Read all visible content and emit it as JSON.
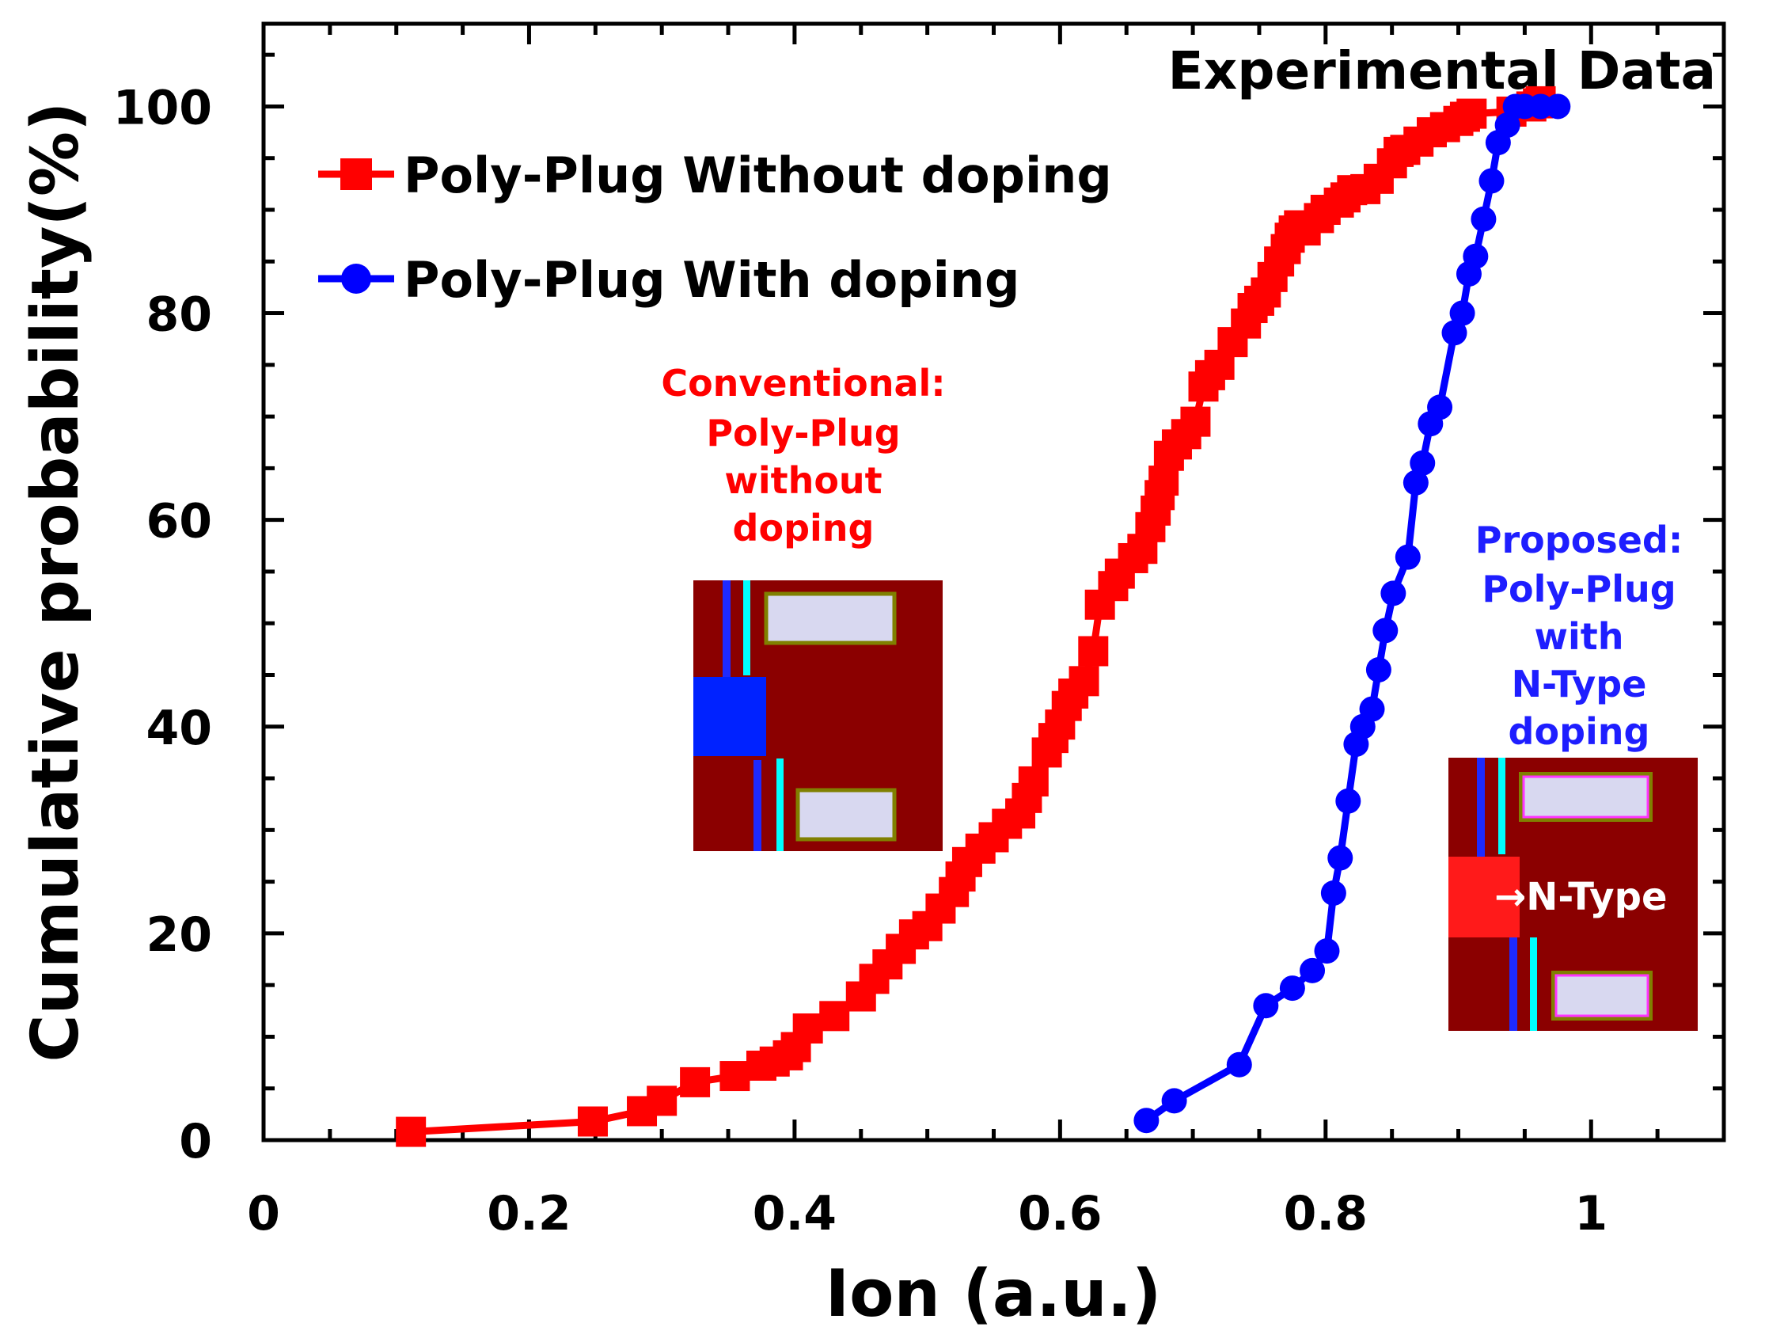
{
  "chart_data": {
    "type": "line",
    "title": "Experimental Data",
    "xlabel": "Ion (a.u.)",
    "ylabel": "Cumulative probability(%)",
    "xlim": [
      0,
      1.1
    ],
    "ylim": [
      0,
      108
    ],
    "xticks": [
      0,
      0.2,
      0.4,
      0.6,
      0.8,
      1
    ],
    "xtick_labels": [
      "0",
      "0.2",
      "0.4",
      "0.6",
      "0.8",
      "1"
    ],
    "yticks": [
      0,
      20,
      40,
      60,
      80,
      100
    ],
    "ytick_labels": [
      "0",
      "20",
      "40",
      "60",
      "80",
      "100"
    ],
    "grid": false,
    "legend_position": "top-left",
    "series": [
      {
        "name": "Poly-Plug Without doping",
        "color": "#ff0000",
        "marker": "square",
        "x": [
          0.111,
          0.248,
          0.285,
          0.3,
          0.325,
          0.355,
          0.375,
          0.385,
          0.395,
          0.401,
          0.41,
          0.43,
          0.45,
          0.46,
          0.47,
          0.48,
          0.49,
          0.5,
          0.51,
          0.52,
          0.525,
          0.53,
          0.54,
          0.55,
          0.56,
          0.57,
          0.575,
          0.58,
          0.59,
          0.595,
          0.6,
          0.605,
          0.61,
          0.618,
          0.625,
          0.63,
          0.64,
          0.645,
          0.655,
          0.662,
          0.668,
          0.672,
          0.675,
          0.678,
          0.682,
          0.688,
          0.695,
          0.702,
          0.708,
          0.713,
          0.72,
          0.73,
          0.74,
          0.745,
          0.75,
          0.755,
          0.76,
          0.765,
          0.77,
          0.773,
          0.776,
          0.78,
          0.785,
          0.795,
          0.8,
          0.81,
          0.815,
          0.82,
          0.83,
          0.84,
          0.85,
          0.855,
          0.86,
          0.87,
          0.88,
          0.89,
          0.9,
          0.905,
          0.91,
          0.94,
          0.955,
          0.96,
          0.962
        ],
        "y": [
          0.8,
          1.8,
          2.8,
          3.8,
          5.6,
          6.2,
          7.2,
          7.6,
          8.2,
          9.0,
          10.8,
          12.0,
          13.9,
          15.6,
          17.0,
          18.5,
          19.9,
          20.7,
          22.4,
          24.0,
          25.5,
          26.9,
          28.2,
          29.3,
          30.6,
          31.6,
          33.1,
          34.7,
          37.5,
          38.9,
          40.2,
          42.0,
          43.2,
          44.4,
          47.3,
          51.8,
          53.6,
          54.8,
          56.3,
          57.2,
          59.3,
          60.9,
          62.4,
          63.8,
          66.2,
          67.3,
          68.3,
          69.5,
          72.9,
          74.0,
          75.0,
          77.2,
          79.0,
          80.5,
          81.2,
          82.0,
          83.5,
          85.0,
          86.2,
          87.3,
          88.0,
          88.5,
          88.0,
          89.2,
          90.0,
          90.7,
          91.2,
          91.9,
          92.0,
          93.0,
          94.5,
          95.6,
          95.8,
          96.6,
          97.5,
          98.0,
          98.6,
          99.0,
          99.3,
          99.5,
          100.0,
          100.3,
          100.5
        ]
      },
      {
        "name": "Poly-Plug With doping",
        "color": "#0000ff",
        "marker": "circle",
        "x": [
          0.665,
          0.686,
          0.735,
          0.755,
          0.775,
          0.79,
          0.801,
          0.806,
          0.811,
          0.817,
          0.823,
          0.828,
          0.835,
          0.84,
          0.845,
          0.851,
          0.862,
          0.868,
          0.873,
          0.879,
          0.886,
          0.897,
          0.903,
          0.908,
          0.913,
          0.919,
          0.925,
          0.93,
          0.937,
          0.943,
          0.95,
          0.962,
          0.975
        ],
        "y": [
          1.9,
          3.8,
          7.3,
          13.0,
          14.7,
          16.4,
          18.3,
          23.9,
          27.3,
          32.8,
          38.3,
          40.0,
          41.7,
          45.5,
          49.3,
          52.9,
          56.4,
          63.6,
          65.5,
          69.3,
          70.9,
          78.1,
          80.0,
          83.8,
          85.5,
          89.1,
          92.8,
          96.5,
          98.2,
          100.0,
          100.0,
          100.0,
          100.0
        ]
      }
    ]
  },
  "insets": {
    "left": {
      "caption_lines": [
        "Conventional:",
        "Poly-Plug",
        "without",
        "doping"
      ],
      "caption_color": "#ff0000",
      "substrate_color": "#8b0000",
      "plug_color": "#0022ff",
      "gate_fill": "#d8d8f0",
      "gate_border": "#808000",
      "liner_color": "#00ffff",
      "line_color": "#1e2aff"
    },
    "right": {
      "caption_lines": [
        "Proposed:",
        "Poly-Plug",
        "with",
        "N-Type",
        "doping"
      ],
      "caption_color": "#1e1eff",
      "annotation": "→N-Type",
      "substrate_color": "#8b0000",
      "plug_color": "#ff1a1a",
      "gate_fill": "#d8d8f0",
      "gate_border": "#ff33ff",
      "liner_color": "#00ffff",
      "line_color": "#1e2aff"
    }
  }
}
